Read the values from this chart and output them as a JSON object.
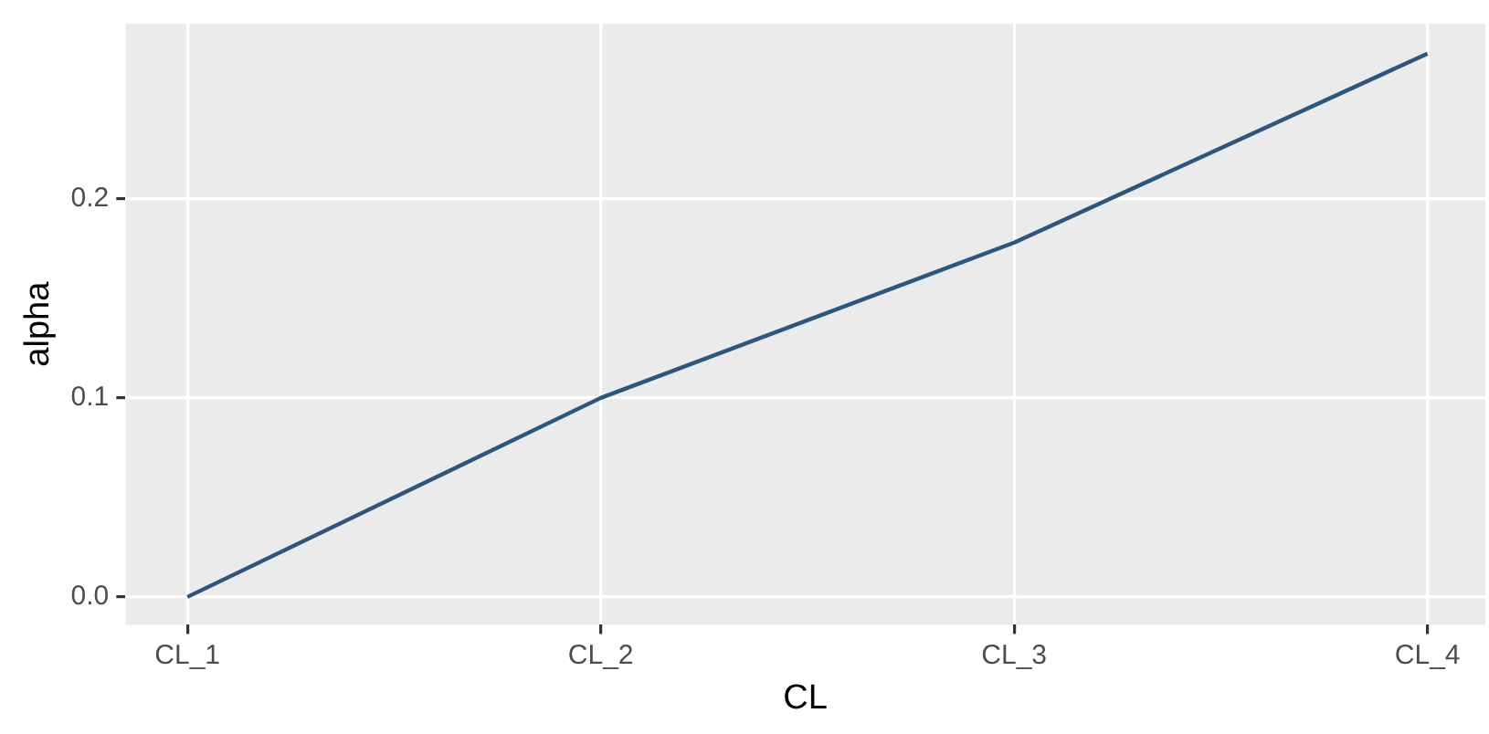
{
  "chart_data": {
    "type": "line",
    "xlabel": "CL",
    "ylabel": "alpha",
    "categories": [
      "CL_1",
      "CL_2",
      "CL_3",
      "CL_4"
    ],
    "series": [
      {
        "color": "#2a5680",
        "values": [
          0,
          0.1,
          0.178,
          0.273
        ]
      }
    ],
    "ylim": [
      -0.014,
      0.288
    ],
    "yticks": [
      {
        "value": 0,
        "label": "0.0"
      },
      {
        "value": 0.1,
        "label": "0.1"
      },
      {
        "value": 0.2,
        "label": "0.2"
      }
    ],
    "grid": true,
    "legend": false,
    "marker": "none",
    "line_style": "solid"
  }
}
